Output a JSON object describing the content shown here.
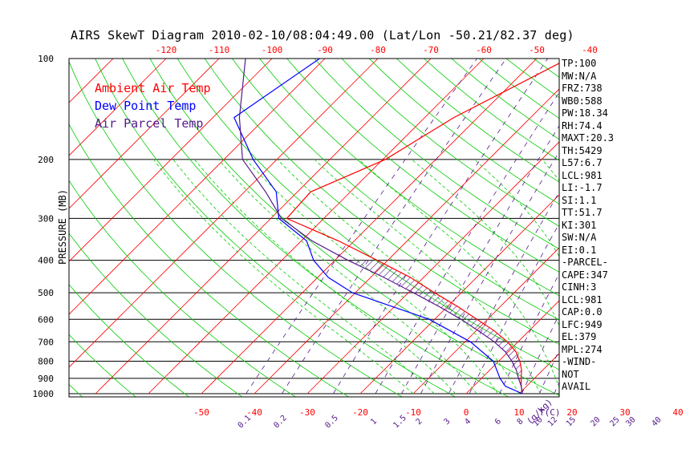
{
  "title": "AIRS SkewT Diagram 2010-02-10/08:04:49.00 (Lat/Lon -50.21/82.37 deg)",
  "chart_data": {
    "type": "line",
    "ylabel": "PRESSURE (MB)",
    "pressure_ticks": [
      100,
      200,
      300,
      400,
      500,
      600,
      700,
      800,
      900,
      1000
    ],
    "top_temp_ticks": [
      -120,
      -110,
      -100,
      -90,
      -80,
      -70,
      -60,
      -50,
      -40
    ],
    "bottom_temp_ticks": [
      -50,
      -40,
      -30,
      -20,
      -10,
      0,
      10,
      20,
      30,
      40
    ],
    "bottom_temp_unit": "T(C)",
    "mixing_ratio_ticks": [
      "0.1",
      "0.2",
      "0.5",
      "1",
      "1.5",
      "2",
      "3",
      "4",
      "6",
      "8",
      "10",
      "12",
      "15",
      "20",
      "25",
      "30",
      "40"
    ],
    "mixing_ratio_unit": "g/kg",
    "series": [
      {
        "name": "Ambient Air Temp",
        "color": "#ff0000",
        "points": [
          [
            100,
            -44
          ],
          [
            150,
            -54.5
          ],
          [
            200,
            -59.5
          ],
          [
            250,
            -67.5
          ],
          [
            300,
            -67
          ],
          [
            350,
            -53
          ],
          [
            400,
            -42
          ],
          [
            450,
            -32.5
          ],
          [
            500,
            -25
          ],
          [
            550,
            -18
          ],
          [
            600,
            -12
          ],
          [
            650,
            -6.5
          ],
          [
            700,
            -2
          ],
          [
            750,
            1.5
          ],
          [
            800,
            4
          ],
          [
            850,
            6
          ],
          [
            900,
            7.5
          ],
          [
            950,
            9
          ],
          [
            1000,
            10.6
          ]
        ]
      },
      {
        "name": "Dew Point Temp",
        "color": "#0000ff",
        "points": [
          [
            100,
            -91
          ],
          [
            150,
            -96
          ],
          [
            200,
            -84.5
          ],
          [
            250,
            -74
          ],
          [
            300,
            -68.5
          ],
          [
            350,
            -59
          ],
          [
            400,
            -54
          ],
          [
            450,
            -48
          ],
          [
            500,
            -40.5
          ],
          [
            600,
            -21
          ],
          [
            700,
            -9
          ],
          [
            800,
            -1
          ],
          [
            900,
            3.5
          ],
          [
            950,
            6
          ],
          [
            1000,
            10.6
          ]
        ]
      },
      {
        "name": "Air Parcel Temp",
        "color": "#551a8b",
        "points": [
          [
            100,
            -105
          ],
          [
            150,
            -95
          ],
          [
            200,
            -86.5
          ],
          [
            250,
            -76
          ],
          [
            300,
            -68
          ],
          [
            350,
            -58
          ],
          [
            400,
            -47.5
          ],
          [
            450,
            -37.5
          ],
          [
            500,
            -29
          ],
          [
            550,
            -21.5
          ],
          [
            600,
            -15
          ],
          [
            650,
            -9.5
          ],
          [
            700,
            -4.5
          ],
          [
            750,
            -0.5
          ],
          [
            800,
            2.5
          ],
          [
            850,
            5
          ],
          [
            900,
            7
          ],
          [
            950,
            9
          ],
          [
            1000,
            10.6
          ]
        ]
      }
    ]
  },
  "legend": [
    {
      "label": "Ambient Air Temp",
      "color": "#ff0000"
    },
    {
      "label": "Dew Point Temp",
      "color": "#0000ff"
    },
    {
      "label": "Air Parcel Temp",
      "color": "#551a8b"
    }
  ],
  "stats": [
    "TP:100",
    "MW:N/A",
    "FRZ:738",
    "WB0:588",
    "PW:18.34",
    "RH:74.4",
    "MAXT:20.3",
    "TH:5429",
    "L57:6.7",
    "LCL:981",
    "LI:-1.7",
    "SI:1.1",
    "TT:51.7",
    "KI:301",
    "SW:N/A",
    "EI:0.1",
    "-PARCEL-",
    "CAPE:347",
    "CINH:3",
    "LCL:981",
    "CAP:0.0",
    "LFC:949",
    "EL:379",
    "MPL:274",
    "-WIND-",
    "NOT",
    "AVAIL"
  ]
}
